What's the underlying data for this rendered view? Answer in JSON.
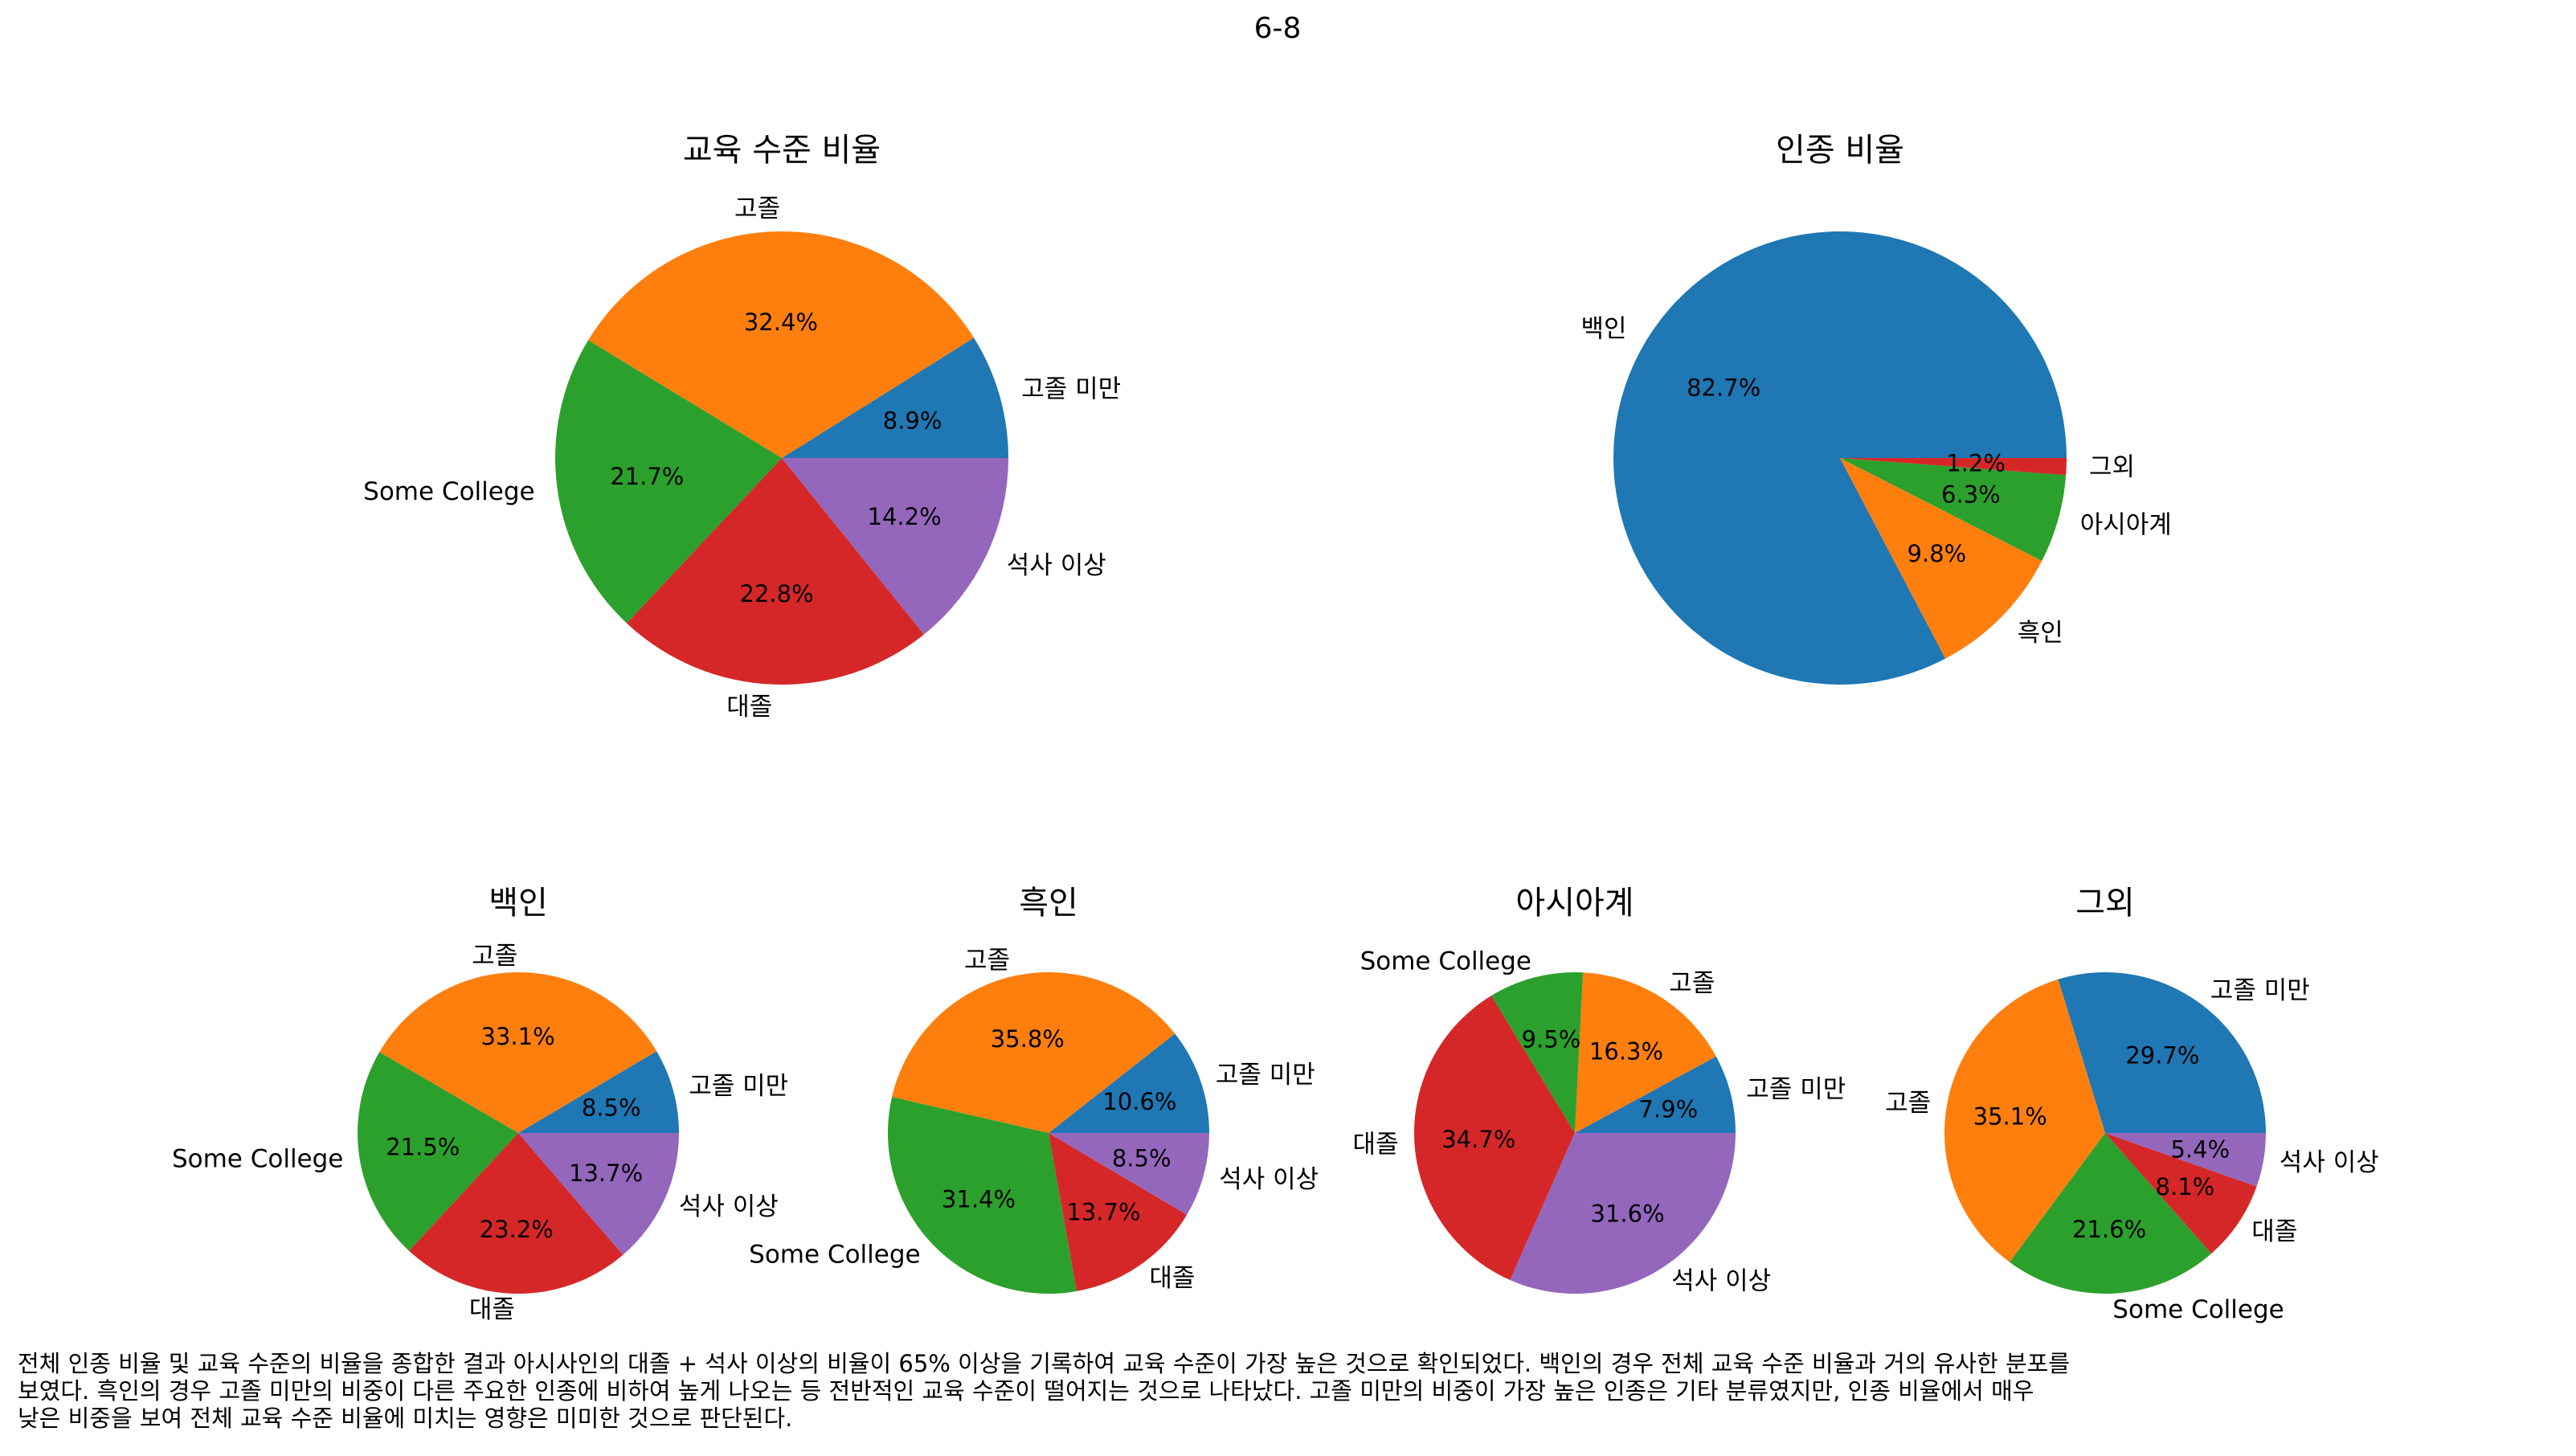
{
  "suptitle": "6-8",
  "colors": {
    "blue": "#1f77b4",
    "orange": "#ff7f0e",
    "green": "#2ca02c",
    "red": "#d62728",
    "purple": "#9467bd"
  },
  "chart_data": [
    {
      "type": "pie",
      "title": "교육 수준 비율",
      "labels": [
        "고졸 미만",
        "고졸",
        "Some College",
        "대졸",
        "석사 이상"
      ],
      "values": [
        8.9,
        32.4,
        21.7,
        22.8,
        14.2
      ],
      "percent_labels": [
        "8.9%",
        "32.4%",
        "21.7%",
        "22.8%",
        "14.2%"
      ],
      "colors": [
        "#1f77b4",
        "#ff7f0e",
        "#2ca02c",
        "#d62728",
        "#9467bd"
      ]
    },
    {
      "type": "pie",
      "title": "인종 비율",
      "labels": [
        "백인",
        "흑인",
        "아시아계",
        "그외"
      ],
      "values": [
        82.7,
        9.8,
        6.3,
        1.2
      ],
      "percent_labels": [
        "82.7%",
        "9.8%",
        "6.3%",
        "1.2%"
      ],
      "colors": [
        "#1f77b4",
        "#ff7f0e",
        "#2ca02c",
        "#d62728"
      ]
    },
    {
      "type": "pie",
      "title": "백인",
      "labels": [
        "고졸 미만",
        "고졸",
        "Some College",
        "대졸",
        "석사 이상"
      ],
      "values": [
        8.5,
        33.1,
        21.5,
        23.2,
        13.7
      ],
      "percent_labels": [
        "8.5%",
        "33.1%",
        "21.5%",
        "23.2%",
        "13.7%"
      ],
      "colors": [
        "#1f77b4",
        "#ff7f0e",
        "#2ca02c",
        "#d62728",
        "#9467bd"
      ]
    },
    {
      "type": "pie",
      "title": "흑인",
      "labels": [
        "고졸 미만",
        "고졸",
        "Some College",
        "대졸",
        "석사 이상"
      ],
      "values": [
        10.6,
        35.8,
        31.4,
        13.7,
        8.5
      ],
      "percent_labels": [
        "10.6%",
        "35.8%",
        "31.4%",
        "13.7%",
        "8.5%"
      ],
      "colors": [
        "#1f77b4",
        "#ff7f0e",
        "#2ca02c",
        "#d62728",
        "#9467bd"
      ]
    },
    {
      "type": "pie",
      "title": "아시아계",
      "labels": [
        "고졸 미만",
        "고졸",
        "Some College",
        "대졸",
        "석사 이상"
      ],
      "values": [
        7.9,
        16.3,
        9.5,
        34.7,
        31.6
      ],
      "percent_labels": [
        "7.9%",
        "16.3%",
        "9.5%",
        "34.7%",
        "31.6%"
      ],
      "colors": [
        "#1f77b4",
        "#ff7f0e",
        "#2ca02c",
        "#d62728",
        "#9467bd"
      ]
    },
    {
      "type": "pie",
      "title": "그외",
      "labels": [
        "고졸 미만",
        "고졸",
        "Some College",
        "대졸",
        "석사 이상"
      ],
      "values": [
        29.7,
        35.1,
        21.6,
        8.1,
        5.4
      ],
      "percent_labels": [
        "29.7%",
        "35.1%",
        "21.6%",
        "8.1%",
        "5.4%"
      ],
      "colors": [
        "#1f77b4",
        "#ff7f0e",
        "#2ca02c",
        "#d62728",
        "#9467bd"
      ]
    }
  ],
  "caption": {
    "line1": "전체 인종 비율 및 교육 수준의 비율을 종합한 결과 아시사인의 대졸 + 석사 이상의 비율이 65% 이상을 기록하여 교육 수준이 가장 높은 것으로 확인되었다. 백인의 경우 전체 교육 수준 비율과 거의 유사한 분포를",
    "line2": "보였다. 흑인의 경우 고졸 미만의 비중이 다른 주요한 인종에 비하여 높게 나오는 등 전반적인 교육 수준이 떨어지는 것으로 나타났다. 고졸 미만의 비중이 가장 높은 인종은 기타 분류였지만, 인종 비율에서 매우",
    "line3": "낮은 비중을 보여 전체 교육 수준 비율에 미치는 영향은 미미한 것으로 판단된다."
  }
}
